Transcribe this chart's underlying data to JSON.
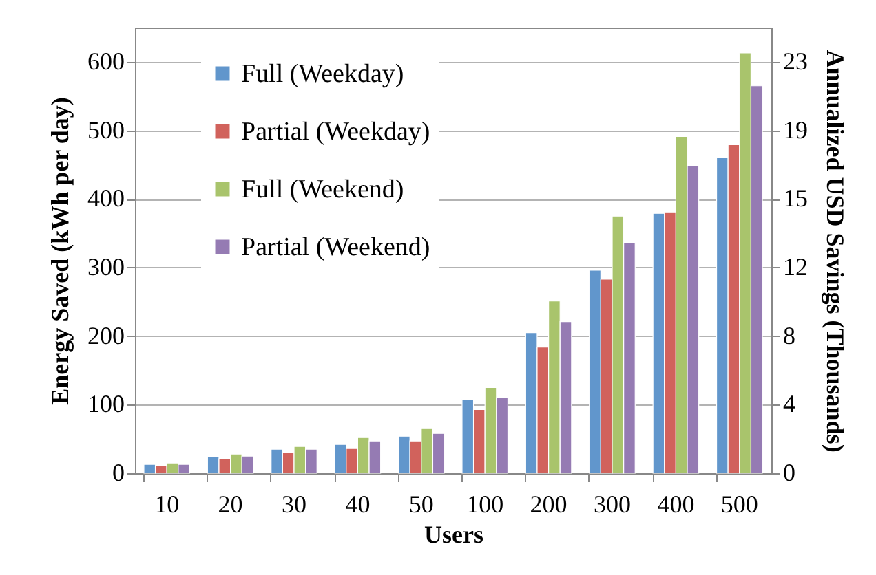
{
  "chart_data": {
    "type": "bar",
    "xlabel": "Users",
    "ylabel": "Energy Saved (kWh per day)",
    "y2label": "Annualized USD Savings (Thousands)",
    "categories": [
      "10",
      "20",
      "30",
      "40",
      "50",
      "100",
      "200",
      "300",
      "400",
      "500"
    ],
    "series": [
      {
        "name": "Full (Weekday)",
        "color": "#6196cc",
        "values": [
          13,
          24,
          35,
          42,
          54,
          108,
          205,
          296,
          379,
          460
        ]
      },
      {
        "name": "Partial (Weekday)",
        "color": "#d1625c",
        "values": [
          11,
          21,
          30,
          36,
          47,
          93,
          184,
          283,
          381,
          479
        ]
      },
      {
        "name": "Full (Weekend)",
        "color": "#a9c46c",
        "values": [
          15,
          28,
          39,
          52,
          65,
          125,
          251,
          375,
          491,
          613
        ]
      },
      {
        "name": "Partial (Weekend)",
        "color": "#957bb3",
        "values": [
          13,
          25,
          35,
          47,
          58,
          110,
          221,
          336,
          448,
          565
        ]
      }
    ],
    "ylim": [
      0,
      650
    ],
    "yticks": [
      0,
      100,
      200,
      300,
      400,
      500,
      600
    ],
    "y2lim": [
      0,
      25.025
    ],
    "y2ticks": [
      0,
      {
        "value": 3.85,
        "label": "4"
      },
      {
        "value": 7.7,
        "label": "8"
      },
      {
        "value": 11.55,
        "label": "12"
      },
      {
        "value": 15.4,
        "label": "15"
      },
      {
        "value": 19.25,
        "label": "19"
      },
      {
        "value": 23.1,
        "label": "23"
      }
    ],
    "grid": "y",
    "legend": "top left"
  }
}
